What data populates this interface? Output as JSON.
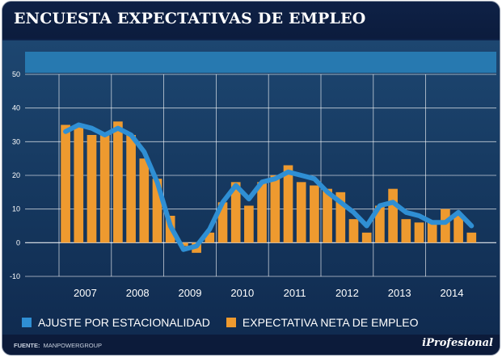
{
  "header": {
    "title": "ENCUESTA EXPECTATIVAS DE EMPLEO"
  },
  "footer": {
    "source_label": "FUENTE:",
    "source_value": "MANPOWERGROUP",
    "brand": "iProfesional"
  },
  "colors": {
    "background": "#0e2249",
    "band": "#2779b0",
    "bar": "#ee9a2f",
    "line": "#2f8fd4",
    "grid": "#ffffff",
    "plot": "#ffffff"
  },
  "chart_data": {
    "type": "bar",
    "title": "ENCUESTA EXPECTATIVAS DE EMPLEO",
    "ylim": [
      -10,
      50
    ],
    "yticks": [
      "50",
      "40",
      "30",
      "20",
      "10",
      "0",
      "-10"
    ],
    "ytick_values": [
      50,
      40,
      30,
      20,
      10,
      0,
      -10
    ],
    "year_labels": [
      "2007",
      "2008",
      "2009",
      "2010",
      "2011",
      "2012",
      "2013",
      "2014"
    ],
    "quarters_per_year": 4,
    "series": [
      {
        "name": "EXPECTATIVA NETA DE EMPLEO",
        "type": "bar",
        "values": [
          35,
          35,
          32,
          32,
          36,
          32,
          25,
          19,
          8,
          -1,
          -3,
          3,
          12,
          18,
          11,
          18,
          20,
          23,
          18,
          17,
          16,
          15,
          7,
          3,
          11,
          16,
          7,
          6,
          6,
          10,
          8,
          3
        ]
      },
      {
        "name": "AJUSTE POR ESTACIONALIDAD",
        "type": "line",
        "values": [
          33,
          35,
          34,
          32,
          34,
          32,
          27,
          18,
          5,
          -2,
          -1,
          4,
          12,
          17,
          13,
          18,
          19,
          21,
          20,
          19,
          15,
          12,
          9,
          5,
          11,
          12,
          9,
          8,
          6,
          6,
          9,
          5
        ]
      }
    ],
    "legend": [
      "AJUSTE POR ESTACIONALIDAD",
      "EXPECTATIVA NETA DE EMPLEO"
    ],
    "legend_position": "bottom"
  }
}
